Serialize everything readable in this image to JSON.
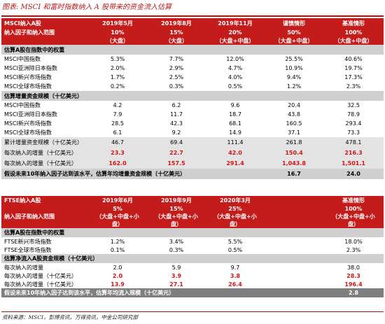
{
  "title": "图表: MSCI 和富时指数纳入 A 股带来的资金流入估算",
  "msci": {
    "header": {
      "label1": "MSCI纳入A股",
      "label2": "纳入因子和纳入范围",
      "cols": [
        {
          "date": "2019年5月",
          "pct": "10%",
          "scope": "（大盘）"
        },
        {
          "date": "2019年8月",
          "pct": "15%",
          "scope": "（大盘）"
        },
        {
          "date": "2019年11月",
          "pct": "20%",
          "scope": "（大盘+中盘）"
        },
        {
          "date": "谨慎情形",
          "pct": "50%",
          "scope": "（大盘+中盘）"
        },
        {
          "date": "基准情形",
          "pct": "100%",
          "scope": "（大盘+中盘）"
        }
      ]
    },
    "weight_section": "估算A股在指数中的权重",
    "weight_rows": [
      {
        "name": "MSCI中国指数",
        "v": [
          "5.3%",
          "7.7%",
          "12.0%",
          "25.5%",
          "40.6%"
        ]
      },
      {
        "name": "MSCI亚洲除日本指数",
        "v": [
          "2.0%",
          "2.9%",
          "4.7%",
          "10.9%",
          "19.7%"
        ]
      },
      {
        "name": "MSCI新兴市场指数",
        "v": [
          "1.7%",
          "2.5%",
          "4.0%",
          "9.4%",
          "17.3%"
        ]
      },
      {
        "name": "MSCI全球市场指数",
        "v": [
          "0.2%",
          "0.3%",
          "0.5%",
          "1.2%",
          "2.3%"
        ]
      }
    ],
    "flow_section": "估算增量资金规模（十亿美元）",
    "flow_rows": [
      {
        "name": "MSCI中国指数",
        "v": [
          "4.2",
          "6.2",
          "9.6",
          "20.4",
          "32.5"
        ]
      },
      {
        "name": "MSCI亚洲除日本指数",
        "v": [
          "7.9",
          "11.7",
          "18.7",
          "43.8",
          "78.9"
        ]
      },
      {
        "name": "MSCI新兴市场指数",
        "v": [
          "28.5",
          "42.3",
          "68.1",
          "160.5",
          "293.4"
        ]
      },
      {
        "name": "MSCI全球市场指数",
        "v": [
          "6.1",
          "9.2",
          "14.9",
          "37.1",
          "73.3"
        ]
      }
    ],
    "cum_row": {
      "name": "累计增量资金规模（十亿美元）",
      "v": [
        "46.7",
        "69.4",
        "111.4",
        "261.8",
        "478.1"
      ]
    },
    "per_row": {
      "name": "每次纳入的增量（十亿美元）",
      "v": [
        "23.3",
        "22.7",
        "42.0",
        "150.4",
        "216.3"
      ]
    },
    "per_row2": {
      "name": "每次纳入的增量（十亿美元）",
      "v": [
        "162.0",
        "157.5",
        "291.4",
        "1,043.8",
        "1,501.1"
      ]
    },
    "assume": {
      "text": "假设未来10年纳入因子达到该水平，估算年均增量资金规模（十亿美元）",
      "v": [
        "16.7",
        "24.0"
      ]
    }
  },
  "ftse": {
    "header": {
      "label1": "FTSE纳入A股",
      "label2": "纳入因子和纳入范围",
      "cols": [
        {
          "date": "2019年6月",
          "pct": "5%",
          "scope1": "（大盘+中盘+小",
          "scope2": "盘）"
        },
        {
          "date": "2019年9月",
          "pct": "15%",
          "scope1": "（大盘+中盘+小",
          "scope2": "盘）"
        },
        {
          "date": "2020年3月",
          "pct": "25%",
          "scope1": "（大盘+中盘+小",
          "scope2": "盘）"
        },
        {
          "date": "",
          "pct": "",
          "scope1": "",
          "scope2": ""
        },
        {
          "date": "基准情形",
          "pct": "100%",
          "scope1": "（大盘+中盘+小",
          "scope2": "盘）"
        }
      ]
    },
    "weight_section": "估算A股在指数中的权重",
    "weight_rows": [
      {
        "name": "FTSE新兴市场指数",
        "v": [
          "1.2%",
          "3.4%",
          "5.5%",
          "",
          "18.0%"
        ]
      },
      {
        "name": "FTSE全球市场指数",
        "v": [
          "0.1%",
          "0.3%",
          "0.5%",
          "",
          "2.3%"
        ]
      }
    ],
    "flow_section": "估算净流入A股资金规模（十亿美元）",
    "flow_rows": [
      {
        "name": "每次纳入的增量",
        "v": [
          "2.0",
          "5.9",
          "9.7",
          "",
          "38.0"
        ],
        "red": false
      },
      {
        "name": "每次纳入的增量（十亿美元）",
        "v": [
          "2.0",
          "3.9",
          "3.8",
          "",
          "28.3"
        ],
        "red": true
      },
      {
        "name": "每次纳入的增量（十亿美元）",
        "v": [
          "13.9",
          "27.1",
          "26.4",
          "",
          "196.4"
        ],
        "red": true
      }
    ],
    "assume": {
      "text": "假设未来10年纳入因子达到该水平，估算年均流入规模（十亿美元）",
      "v": "2.8"
    }
  },
  "source": "资料来源：MSCI，彭博资讯，万得资讯，中金公司研究部",
  "colors": {
    "accent": "#c41b1b",
    "section_gray": "#cfcfcf",
    "highlight_red": "#d21414"
  }
}
